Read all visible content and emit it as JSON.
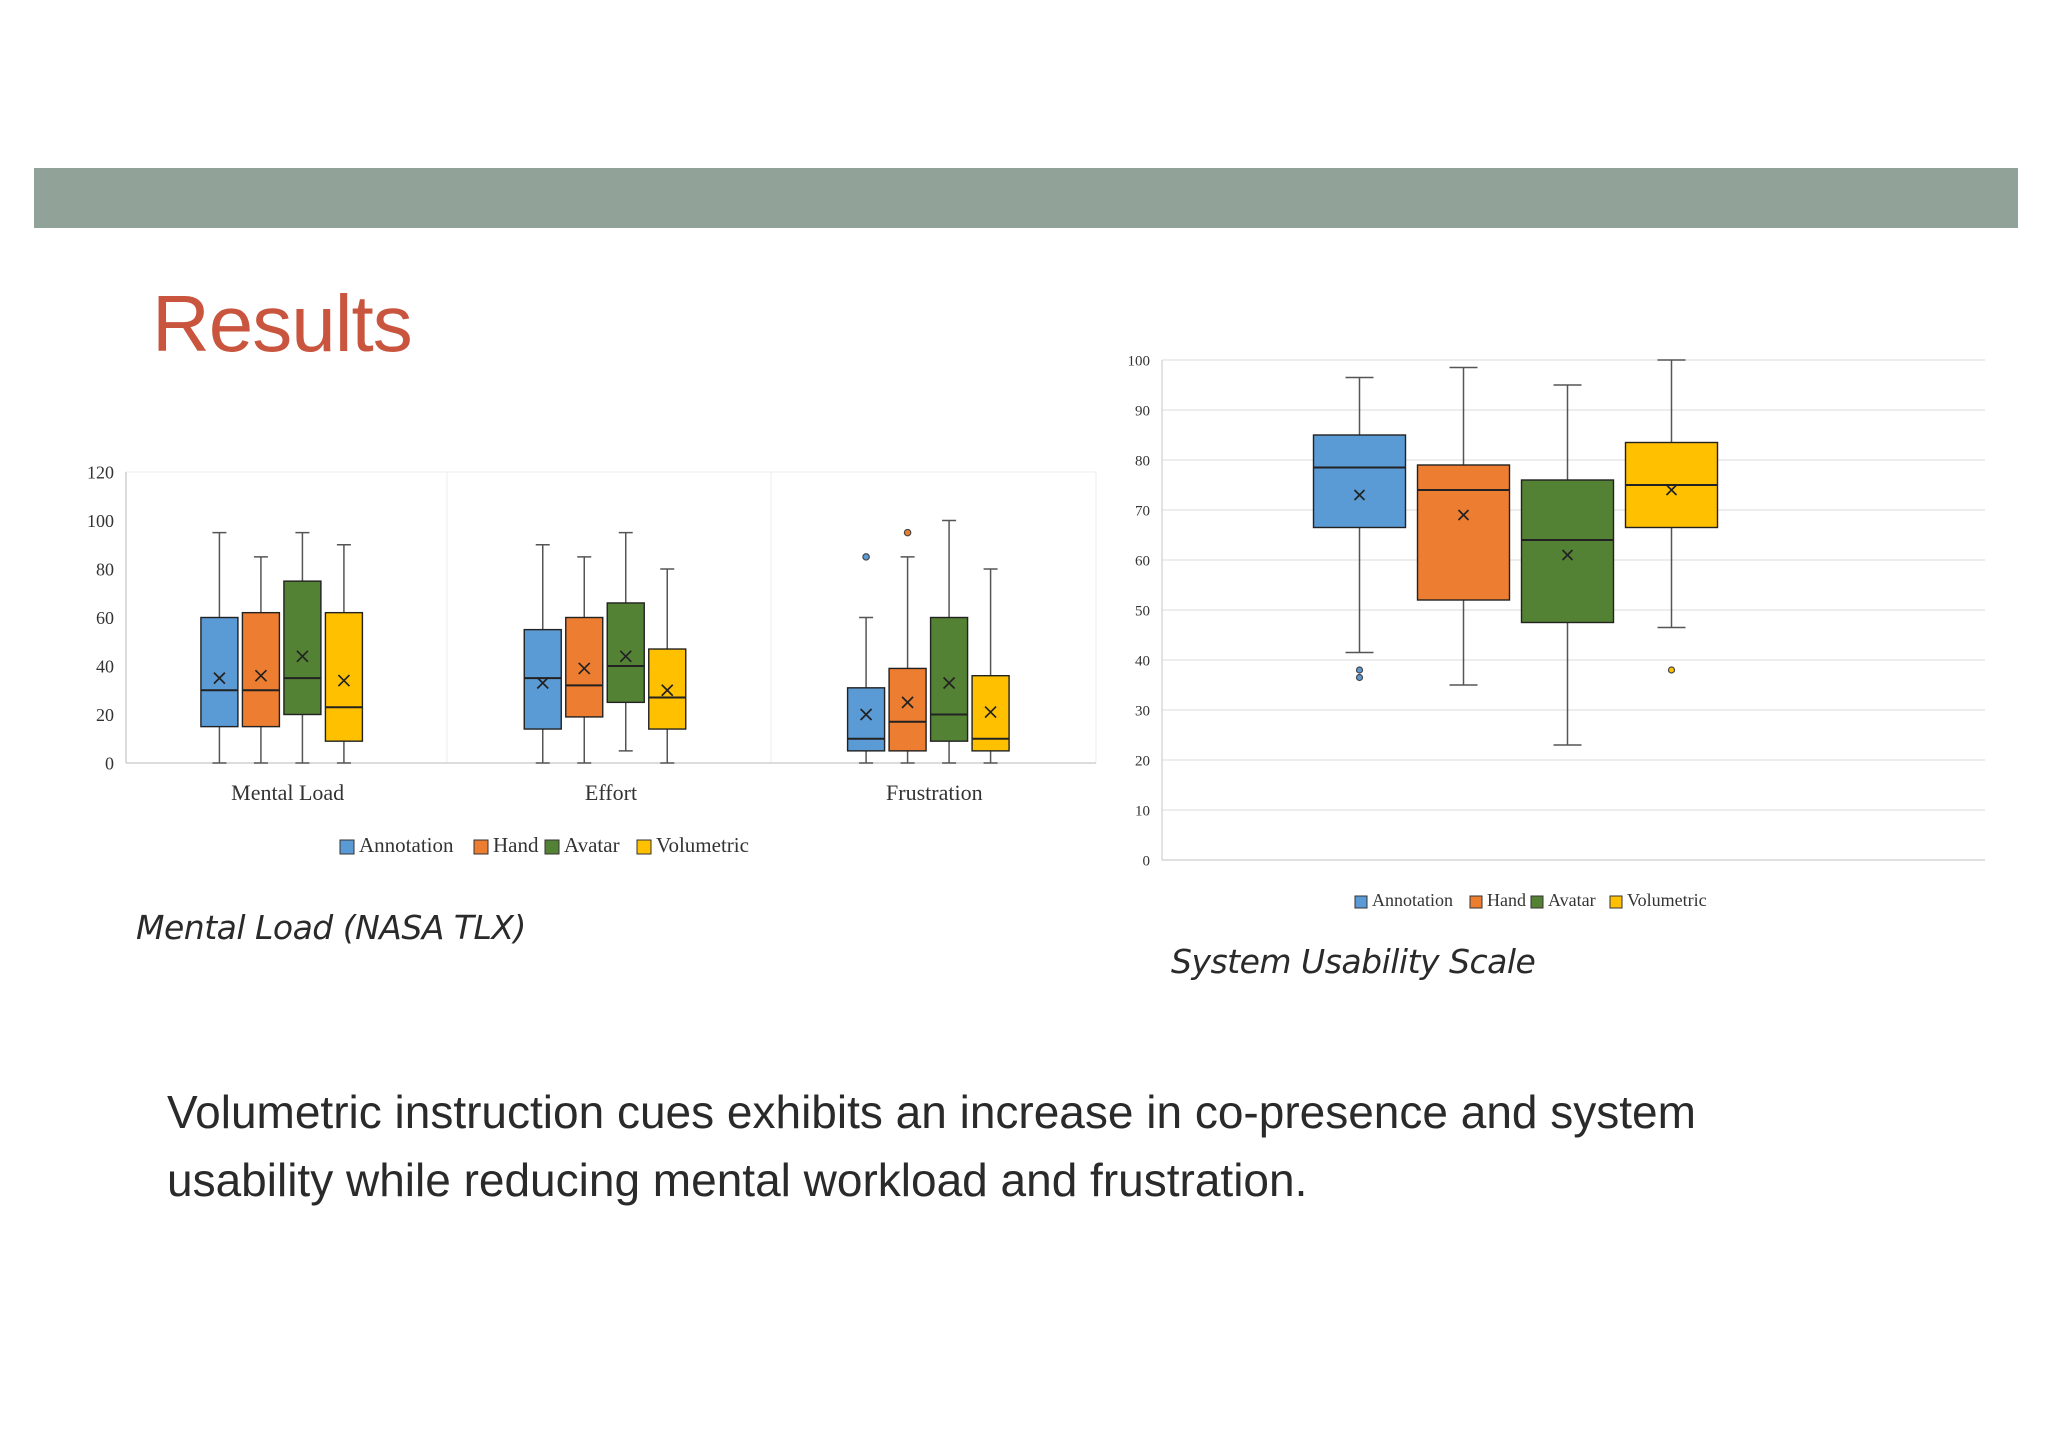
{
  "slide": {
    "title": "Results",
    "summary": "Volumetric instruction cues exhibits an increase in co-presence and system usability while reducing mental workload and frustration."
  },
  "captions": {
    "nasa": "Mental Load (NASA TLX)",
    "sus": "System Usability Scale"
  },
  "colors": {
    "header_bar": "#91a398",
    "title": "#c9553e",
    "Annotation": "#5b9bd5",
    "Hand": "#ed7d31",
    "Avatar": "#548235",
    "Volumetric": "#ffc000"
  },
  "chart_data": [
    {
      "id": "nasa",
      "type": "box",
      "title": "",
      "xlabel": "",
      "ylabel": "",
      "ylim": [
        0,
        120
      ],
      "yticks": [
        0,
        20,
        40,
        60,
        80,
        100,
        120
      ],
      "grid": false,
      "legend": "bottom",
      "categories": [
        "Mental  Load",
        "Effort",
        "Frustration"
      ],
      "series": [
        {
          "name": "Annotation",
          "boxes": [
            {
              "min": 0,
              "q1": 15,
              "median": 30,
              "q3": 60,
              "max": 95,
              "mean": 35,
              "outliers": []
            },
            {
              "min": 0,
              "q1": 14,
              "median": 35,
              "q3": 55,
              "max": 90,
              "mean": 33,
              "outliers": []
            },
            {
              "min": 0,
              "q1": 5,
              "median": 10,
              "q3": 31,
              "max": 60,
              "mean": 20,
              "outliers": [
                85
              ]
            }
          ]
        },
        {
          "name": "Hand",
          "boxes": [
            {
              "min": 0,
              "q1": 15,
              "median": 30,
              "q3": 62,
              "max": 85,
              "mean": 36,
              "outliers": []
            },
            {
              "min": 0,
              "q1": 19,
              "median": 32,
              "q3": 60,
              "max": 85,
              "mean": 39,
              "outliers": []
            },
            {
              "min": 0,
              "q1": 5,
              "median": 17,
              "q3": 39,
              "max": 85,
              "mean": 25,
              "outliers": [
                95
              ]
            }
          ]
        },
        {
          "name": "Avatar",
          "boxes": [
            {
              "min": 0,
              "q1": 20,
              "median": 35,
              "q3": 75,
              "max": 95,
              "mean": 44,
              "outliers": []
            },
            {
              "min": 5,
              "q1": 25,
              "median": 40,
              "q3": 66,
              "max": 95,
              "mean": 44,
              "outliers": []
            },
            {
              "min": 0,
              "q1": 9,
              "median": 20,
              "q3": 60,
              "max": 100,
              "mean": 33,
              "outliers": []
            }
          ]
        },
        {
          "name": "Volumetric",
          "boxes": [
            {
              "min": 0,
              "q1": 9,
              "median": 23,
              "q3": 62,
              "max": 90,
              "mean": 34,
              "outliers": []
            },
            {
              "min": 0,
              "q1": 14,
              "median": 27,
              "q3": 47,
              "max": 80,
              "mean": 30,
              "outliers": []
            },
            {
              "min": 0,
              "q1": 5,
              "median": 10,
              "q3": 36,
              "max": 80,
              "mean": 21,
              "outliers": []
            }
          ]
        }
      ]
    },
    {
      "id": "sus",
      "type": "box",
      "title": "",
      "xlabel": "",
      "ylabel": "",
      "ylim": [
        0,
        100
      ],
      "yticks": [
        0,
        10,
        20,
        30,
        40,
        50,
        60,
        70,
        80,
        90,
        100
      ],
      "grid": true,
      "legend": "bottom",
      "categories": [
        ""
      ],
      "series": [
        {
          "name": "Annotation",
          "boxes": [
            {
              "min": 41.5,
              "q1": 66.5,
              "median": 78.5,
              "q3": 85,
              "max": 96.5,
              "mean": 73,
              "outliers": [
                38,
                36.5
              ]
            }
          ]
        },
        {
          "name": "Hand",
          "boxes": [
            {
              "min": 35,
              "q1": 52,
              "median": 74,
              "q3": 79,
              "max": 98.5,
              "mean": 69,
              "outliers": []
            }
          ]
        },
        {
          "name": "Avatar",
          "boxes": [
            {
              "min": 23,
              "q1": 47.5,
              "median": 64,
              "q3": 76,
              "max": 95,
              "mean": 61,
              "outliers": []
            }
          ]
        },
        {
          "name": "Volumetric",
          "boxes": [
            {
              "min": 46.5,
              "q1": 66.5,
              "median": 75,
              "q3": 83.5,
              "max": 100,
              "mean": 74,
              "outliers": [
                38
              ]
            }
          ]
        }
      ]
    }
  ]
}
